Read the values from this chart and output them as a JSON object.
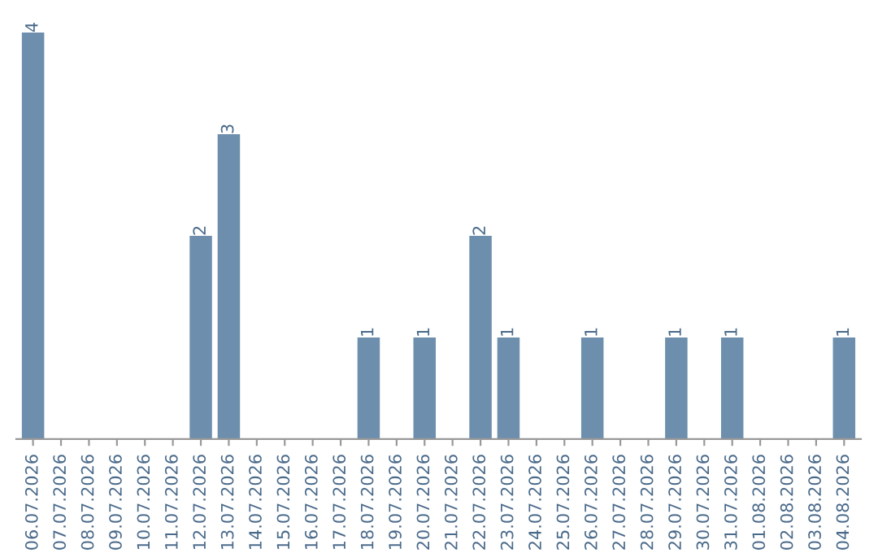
{
  "chart_data": {
    "type": "bar",
    "categories": [
      "06.07.2026",
      "07.07.2026",
      "08.07.2026",
      "09.07.2026",
      "10.07.2026",
      "11.07.2026",
      "12.07.2026",
      "13.07.2026",
      "14.07.2026",
      "15.07.2026",
      "16.07.2026",
      "17.07.2026",
      "18.07.2026",
      "19.07.2026",
      "20.07.2026",
      "21.07.2026",
      "22.07.2026",
      "23.07.2026",
      "24.07.2026",
      "25.07.2026",
      "26.07.2026",
      "27.07.2026",
      "28.07.2026",
      "29.07.2026",
      "30.07.2026",
      "31.07.2026",
      "01.08.2026",
      "02.08.2026",
      "03.08.2026",
      "04.08.2026"
    ],
    "values": [
      4,
      0,
      0,
      0,
      0,
      0,
      2,
      3,
      0,
      0,
      0,
      0,
      1,
      0,
      1,
      0,
      2,
      1,
      0,
      0,
      1,
      0,
      0,
      1,
      0,
      1,
      0,
      0,
      0,
      1
    ],
    "value_labels": [
      "4",
      null,
      null,
      null,
      null,
      null,
      "2",
      "3",
      null,
      null,
      null,
      null,
      "1",
      null,
      "1",
      null,
      "2",
      "1",
      null,
      null,
      "1",
      null,
      null,
      "1",
      null,
      "1",
      null,
      null,
      null,
      "1"
    ],
    "color": "#6d8fad",
    "tick_labels": "x",
    "grid": false,
    "legend": false
  }
}
